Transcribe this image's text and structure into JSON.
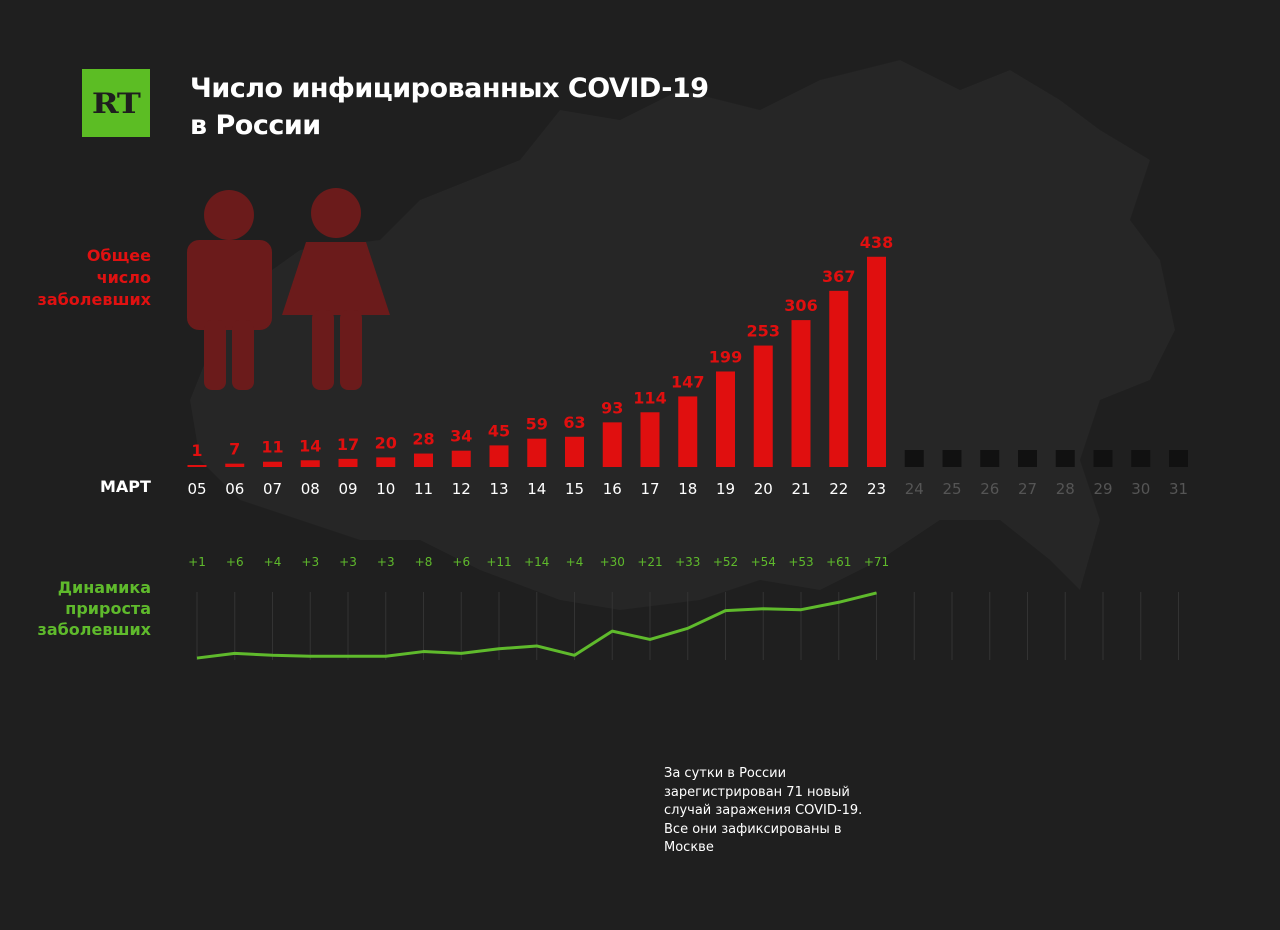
{
  "title_line1": "Число инфицированных COVID-19",
  "title_line2": "в России",
  "logo_text": "RT",
  "total_label": [
    "Общее",
    "число",
    "заболевших"
  ],
  "growth_label": [
    "Динамика",
    "прироста",
    "заболевших"
  ],
  "month_label": "МАРТ",
  "note_lines": [
    "За сутки в России",
    "зарегистрирован 71 новый",
    "случай заражения COVID-19.",
    "Все они зафиксированы в",
    "Москве"
  ],
  "colors": {
    "background": "#1f1f1f",
    "bars": "#e00f0f",
    "growth_line": "#5fba2c",
    "logo": "#5cbd24",
    "future_days": "#555555"
  },
  "chart_data": {
    "type": "bar",
    "xlabel": "МАРТ",
    "categories": [
      "05",
      "06",
      "07",
      "08",
      "09",
      "10",
      "11",
      "12",
      "13",
      "14",
      "15",
      "16",
      "17",
      "18",
      "19",
      "20",
      "21",
      "22",
      "23"
    ],
    "future_categories": [
      "24",
      "25",
      "26",
      "27",
      "28",
      "29",
      "30",
      "31"
    ],
    "values": [
      1,
      7,
      11,
      14,
      17,
      20,
      28,
      34,
      45,
      59,
      63,
      93,
      114,
      147,
      199,
      253,
      306,
      367,
      438
    ],
    "series": [
      {
        "values": [
          1,
          7,
          11,
          14,
          17,
          20,
          28,
          34,
          45,
          59,
          63,
          93,
          114,
          147,
          199,
          253,
          306,
          367,
          438
        ]
      },
      {
        "labels": [
          "+1",
          "+6",
          "+4",
          "+3",
          "+3",
          "+3",
          "+8",
          "+6",
          "+11",
          "+14",
          "+4",
          "+30",
          "+21",
          "+33",
          "+52",
          "+54",
          "+53",
          "+61",
          "+71"
        ],
        "values": [
          1,
          6,
          4,
          3,
          3,
          3,
          8,
          6,
          11,
          14,
          4,
          30,
          21,
          33,
          52,
          54,
          53,
          61,
          71
        ]
      }
    ]
  }
}
